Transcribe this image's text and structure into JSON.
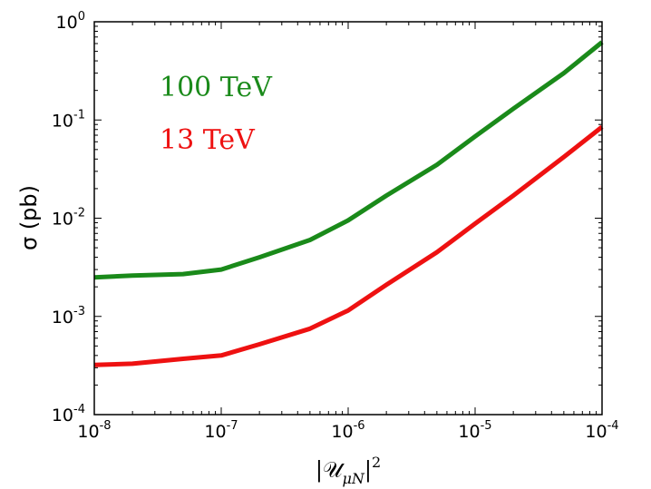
{
  "chart_data": {
    "type": "line",
    "title": "",
    "xlabel": "|U_{μN}|^2",
    "xlabel_main": "|𝒰",
    "xlabel_sub": "μN",
    "xlabel_tail": "|",
    "xlabel_sup": "2",
    "ylabel": "σ (pb)",
    "xscale": "log",
    "yscale": "log",
    "xlim": [
      1e-08,
      0.0001
    ],
    "ylim": [
      0.0001,
      1
    ],
    "x_ticks": [
      {
        "base": "10",
        "exp": "-8"
      },
      {
        "base": "10",
        "exp": "-7"
      },
      {
        "base": "10",
        "exp": "-6"
      },
      {
        "base": "10",
        "exp": "-5"
      },
      {
        "base": "10",
        "exp": "-4"
      }
    ],
    "y_ticks": [
      {
        "base": "10",
        "exp": "-4"
      },
      {
        "base": "10",
        "exp": "-3"
      },
      {
        "base": "10",
        "exp": "-2"
      },
      {
        "base": "10",
        "exp": "-1"
      },
      {
        "base": "10",
        "exp": "0"
      }
    ],
    "series": [
      {
        "name": "100 TeV",
        "color": "#1a8a1a",
        "x": [
          1e-08,
          2e-08,
          5e-08,
          1e-07,
          2e-07,
          5e-07,
          1e-06,
          2e-06,
          5e-06,
          1e-05,
          2e-05,
          5e-05,
          0.0001
        ],
        "y": [
          0.0025,
          0.0026,
          0.0027,
          0.003,
          0.004,
          0.006,
          0.0095,
          0.017,
          0.035,
          0.068,
          0.13,
          0.3,
          0.62
        ]
      },
      {
        "name": "13 TeV",
        "color": "#ee1111",
        "x": [
          1e-08,
          2e-08,
          5e-08,
          1e-07,
          2e-07,
          5e-07,
          1e-06,
          2e-06,
          5e-06,
          1e-05,
          2e-05,
          5e-05,
          0.0001
        ],
        "y": [
          0.00032,
          0.00033,
          0.00037,
          0.0004,
          0.00052,
          0.00075,
          0.00115,
          0.0021,
          0.0045,
          0.0088,
          0.017,
          0.042,
          0.085
        ]
      }
    ],
    "legend": [
      {
        "label": "100 TeV",
        "color": "#1a8a1a"
      },
      {
        "label": "13 TeV",
        "color": "#ee1111"
      }
    ],
    "legend_placement": "top-left",
    "grid": false
  }
}
